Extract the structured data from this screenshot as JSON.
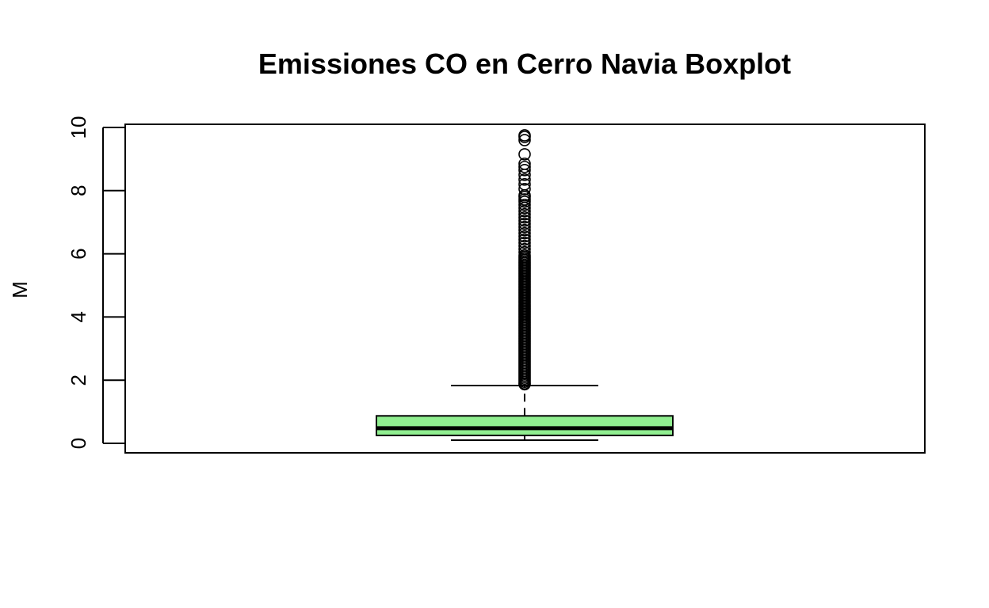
{
  "chart_data": {
    "type": "boxplot",
    "title": "Emissiones CO en Cerro Navia Boxplot",
    "xlabel": "",
    "ylabel": "M",
    "ylim": [
      -0.3,
      10.1
    ],
    "yticks": [
      0,
      2,
      4,
      6,
      8,
      10
    ],
    "grid": false,
    "legend": "none",
    "box": {
      "whisker_low": 0.1,
      "q1": 0.25,
      "median": 0.48,
      "q3": 0.87,
      "whisker_high": 1.83
    },
    "outliers": [
      9.75,
      9.7,
      9.6,
      9.15,
      8.85,
      8.75,
      8.65,
      8.5,
      8.35,
      8.2,
      8.05,
      7.85,
      7.8,
      7.72,
      7.65,
      7.55,
      7.45,
      7.35,
      7.25,
      7.15,
      7.05,
      6.95,
      6.85,
      6.75,
      6.65,
      6.55,
      6.45,
      6.35,
      6.25,
      6.15,
      6.05,
      5.95,
      5.9,
      5.85,
      5.8,
      5.75,
      5.7,
      5.65,
      5.6,
      5.55,
      5.5,
      5.45,
      5.4,
      5.35,
      5.3,
      5.25,
      5.2,
      5.15,
      5.1,
      5.05,
      5.0,
      4.95,
      4.9,
      4.85,
      4.8,
      4.75,
      4.7,
      4.65,
      4.6,
      4.55,
      4.5,
      4.45,
      4.4,
      4.35,
      4.3,
      4.25,
      4.2,
      4.15,
      4.1,
      4.05,
      4.0,
      3.95,
      3.9,
      3.85,
      3.8,
      3.75,
      3.7,
      3.65,
      3.6,
      3.55,
      3.5,
      3.45,
      3.4,
      3.35,
      3.3,
      3.25,
      3.2,
      3.15,
      3.1,
      3.05,
      3.0,
      2.95,
      2.9,
      2.85,
      2.8,
      2.75,
      2.7,
      2.65,
      2.6,
      2.55,
      2.5,
      2.45,
      2.4,
      2.35,
      2.3,
      2.25,
      2.2,
      2.15,
      2.1,
      2.05,
      2.0,
      1.95,
      1.9,
      1.87
    ],
    "colors": {
      "box_fill": "#90ee90",
      "stroke": "#000000"
    }
  }
}
